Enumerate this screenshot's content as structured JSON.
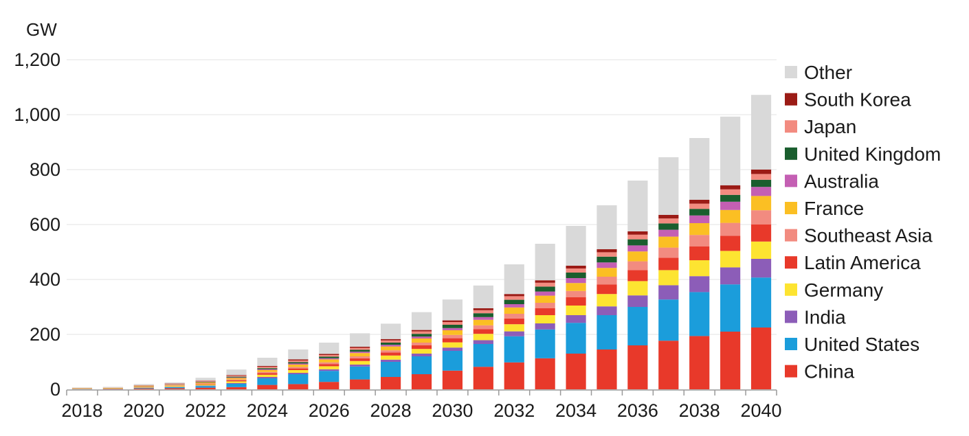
{
  "chart_data": {
    "type": "bar",
    "stacked": true,
    "ylabel": "GW",
    "ylim": [
      0,
      1200
    ],
    "yticks": [
      0,
      200,
      400,
      600,
      800,
      1000,
      1200
    ],
    "ytick_labels": [
      "0",
      "200",
      "400",
      "600",
      "800",
      "1,000",
      "1,200"
    ],
    "xtick_labels": [
      "2018",
      "2020",
      "2022",
      "2024",
      "2026",
      "2028",
      "2030",
      "2032",
      "2034",
      "2036",
      "2038",
      "2040"
    ],
    "categories": [
      "2018",
      "2019",
      "2020",
      "2021",
      "2022",
      "2023",
      "2024",
      "2025",
      "2026",
      "2027",
      "2028",
      "2029",
      "2030",
      "2031",
      "2032",
      "2033",
      "2034",
      "2035",
      "2036",
      "2037",
      "2038",
      "2039",
      "2040"
    ],
    "grid": true,
    "legend_position": "right",
    "series": [
      {
        "name": "China",
        "color": "#e8392a",
        "values": [
          1,
          2,
          3,
          4,
          6,
          8,
          16,
          19,
          27,
          36,
          45,
          55,
          68,
          82,
          98,
          113,
          130,
          145,
          160,
          177,
          194,
          210,
          225
        ]
      },
      {
        "name": "United States",
        "color": "#1b9ddb",
        "values": [
          1,
          1,
          2,
          4,
          6,
          12,
          24,
          36,
          40,
          47,
          55,
          65,
          72,
          83,
          95,
          105,
          112,
          125,
          140,
          150,
          160,
          172,
          182
        ]
      },
      {
        "name": "India",
        "color": "#8c5db8",
        "values": [
          0,
          0,
          1,
          1,
          2,
          3,
          5,
          5,
          6,
          7,
          8,
          10,
          12,
          14,
          18,
          22,
          28,
          32,
          42,
          52,
          58,
          62,
          68
        ]
      },
      {
        "name": "Germany",
        "color": "#fde431",
        "values": [
          1,
          1,
          2,
          3,
          4,
          6,
          8,
          10,
          11,
          13,
          15,
          17,
          19,
          23,
          26,
          30,
          35,
          45,
          52,
          55,
          58,
          60,
          63
        ]
      },
      {
        "name": "Latin America",
        "color": "#e8392a",
        "values": [
          0,
          0,
          1,
          1,
          2,
          4,
          6,
          6,
          8,
          10,
          11,
          13,
          15,
          17,
          21,
          25,
          30,
          35,
          40,
          45,
          50,
          55,
          62
        ]
      },
      {
        "name": "Southeast Asia",
        "color": "#f28b80",
        "values": [
          0,
          0,
          1,
          1,
          2,
          3,
          4,
          5,
          6,
          7,
          8,
          10,
          12,
          14,
          17,
          20,
          23,
          28,
          32,
          37,
          42,
          47,
          52
        ]
      },
      {
        "name": "France",
        "color": "#fbbf23",
        "values": [
          1,
          1,
          2,
          2,
          3,
          5,
          7,
          9,
          11,
          12,
          14,
          15,
          17,
          20,
          23,
          26,
          29,
          32,
          36,
          40,
          43,
          47,
          52
        ]
      },
      {
        "name": "Australia",
        "color": "#c45fb3",
        "values": [
          0,
          0,
          0,
          1,
          1,
          2,
          3,
          4,
          4,
          5,
          6,
          7,
          8,
          10,
          12,
          15,
          18,
          20,
          22,
          25,
          28,
          30,
          33
        ]
      },
      {
        "name": "United Kingdom",
        "color": "#1a5e2e",
        "values": [
          0,
          0,
          1,
          1,
          2,
          3,
          4,
          5,
          6,
          7,
          8,
          10,
          12,
          14,
          16,
          18,
          20,
          21,
          22,
          23,
          24,
          25,
          26
        ]
      },
      {
        "name": "Japan",
        "color": "#f28b80",
        "values": [
          1,
          1,
          2,
          2,
          3,
          4,
          5,
          6,
          6,
          7,
          8,
          9,
          10,
          11,
          13,
          14,
          15,
          16,
          17,
          18,
          19,
          20,
          21
        ]
      },
      {
        "name": "South Korea",
        "color": "#9b1b16",
        "values": [
          0,
          0,
          0,
          1,
          1,
          2,
          3,
          4,
          4,
          4,
          5,
          5,
          6,
          7,
          8,
          9,
          10,
          11,
          12,
          13,
          14,
          15,
          16
        ]
      },
      {
        "name": "Other",
        "color": "#d9d9d9",
        "values": [
          2,
          3,
          4,
          4,
          10,
          20,
          30,
          36,
          41,
          49,
          56,
          65,
          76,
          83,
          108,
          133,
          145,
          160,
          185,
          210,
          225,
          250,
          272
        ]
      }
    ]
  }
}
